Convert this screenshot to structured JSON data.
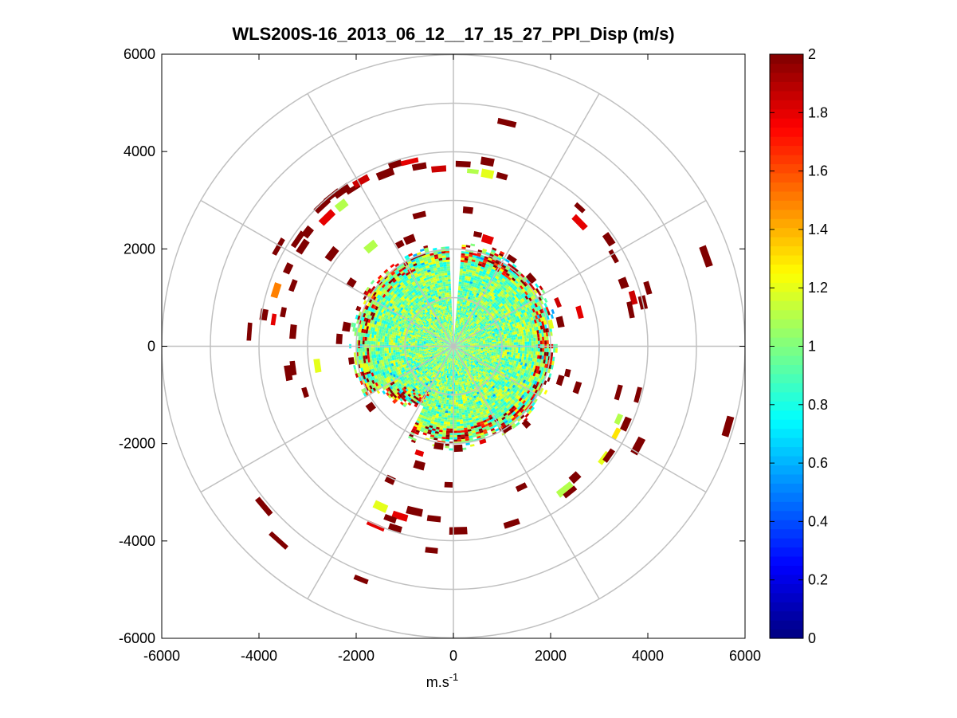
{
  "chart_data": {
    "type": "heatmap",
    "subtype": "polar-ppi",
    "title": "WLS200S-16_2013_06_12__17_15_27_PPI_Disp (m/s)",
    "xlabel": "m.s",
    "xlabel_sup": "-1",
    "ylabel": "",
    "xlim": [
      -6000,
      6000
    ],
    "ylim": [
      -6000,
      6000
    ],
    "xticks": [
      "-6000",
      "-4000",
      "-2000",
      "0",
      "2000",
      "4000",
      "6000"
    ],
    "yticks": [
      "6000",
      "4000",
      "2000",
      "0",
      "-2000",
      "-4000",
      "-6000"
    ],
    "xtick_values": [
      -6000,
      -4000,
      -2000,
      0,
      2000,
      4000,
      6000
    ],
    "ytick_values": [
      6000,
      4000,
      2000,
      0,
      -2000,
      -4000,
      -6000
    ],
    "grid": true,
    "range_rings": [
      1000,
      2000,
      3000,
      4000,
      5000,
      6000
    ],
    "spokes_deg": [
      0,
      30,
      60,
      90,
      120,
      150,
      180,
      210,
      240,
      270,
      300,
      330
    ],
    "colorbar": {
      "colormap": "jet",
      "range": [
        0,
        2
      ],
      "ticks": [
        "0",
        "0.2",
        "0.4",
        "0.6",
        "0.8",
        "1",
        "1.2",
        "1.4",
        "1.6",
        "1.8",
        "2"
      ],
      "tick_values": [
        0,
        0.2,
        0.4,
        0.6,
        0.8,
        1,
        1.2,
        1.4,
        1.6,
        1.8,
        2
      ]
    },
    "inner_field": {
      "max_range_m": 2000,
      "typical_value": 1.0,
      "value_spread": 0.25,
      "gap_azimuth_deg": [
        357,
        3
      ]
    },
    "patches": [
      {
        "x": -3200,
        "y": 2200,
        "v": 2
      },
      {
        "x": -3100,
        "y": 2050,
        "v": 2
      },
      {
        "x": -3000,
        "y": 2350,
        "v": 2
      },
      {
        "x": -2700,
        "y": 2900,
        "v": 2
      },
      {
        "x": -2500,
        "y": 3100,
        "v": 2
      },
      {
        "x": -2300,
        "y": 3200,
        "v": 2
      },
      {
        "x": -2050,
        "y": 3250,
        "v": 2
      },
      {
        "x": -1900,
        "y": 3400,
        "v": 1.85
      },
      {
        "x": -1400,
        "y": 3550,
        "v": 2
      },
      {
        "x": -1200,
        "y": 3750,
        "v": 2
      },
      {
        "x": -900,
        "y": 3800,
        "v": 1.8
      },
      {
        "x": -700,
        "y": 3700,
        "v": 2
      },
      {
        "x": -300,
        "y": 3650,
        "v": 1.85
      },
      {
        "x": -2600,
        "y": 2650,
        "v": 1.8
      },
      {
        "x": -2300,
        "y": 2900,
        "v": 1.1
      },
      {
        "x": -3600,
        "y": 2050,
        "v": 2
      },
      {
        "x": -3400,
        "y": 1600,
        "v": 2
      },
      {
        "x": -3300,
        "y": 1250,
        "v": 2
      },
      {
        "x": -3650,
        "y": 1150,
        "v": 1.5
      },
      {
        "x": -3500,
        "y": 700,
        "v": 2
      },
      {
        "x": -3700,
        "y": 550,
        "v": 1.8
      },
      {
        "x": -4200,
        "y": 300,
        "v": 2
      },
      {
        "x": -3900,
        "y": 650,
        "v": 2
      },
      {
        "x": -3300,
        "y": 300,
        "v": 2
      },
      {
        "x": -3400,
        "y": -550,
        "v": 2
      },
      {
        "x": -3300,
        "y": -450,
        "v": 2
      },
      {
        "x": -2800,
        "y": -400,
        "v": 1.2
      },
      {
        "x": -3050,
        "y": -950,
        "v": 2
      },
      {
        "x": -1700,
        "y": 2050,
        "v": 1.1
      },
      {
        "x": -1100,
        "y": 2100,
        "v": 2
      },
      {
        "x": -900,
        "y": 2200,
        "v": 2
      },
      {
        "x": -700,
        "y": 2700,
        "v": 2
      },
      {
        "x": 200,
        "y": 3750,
        "v": 2
      },
      {
        "x": 400,
        "y": 3600,
        "v": 1.1
      },
      {
        "x": 700,
        "y": 3550,
        "v": 1.2
      },
      {
        "x": 1000,
        "y": 3500,
        "v": 2
      },
      {
        "x": 700,
        "y": 3800,
        "v": 2
      },
      {
        "x": 1100,
        "y": 4600,
        "v": 2
      },
      {
        "x": 300,
        "y": 2800,
        "v": 2
      },
      {
        "x": 500,
        "y": 2300,
        "v": 2
      },
      {
        "x": 700,
        "y": 2200,
        "v": 1.8
      },
      {
        "x": 2600,
        "y": 2850,
        "v": 2
      },
      {
        "x": 3200,
        "y": 2200,
        "v": 2
      },
      {
        "x": 3300,
        "y": 1850,
        "v": 2
      },
      {
        "x": 3500,
        "y": 1300,
        "v": 2
      },
      {
        "x": 3700,
        "y": 1000,
        "v": 1.85
      },
      {
        "x": 3650,
        "y": 750,
        "v": 2
      },
      {
        "x": 3900,
        "y": 900,
        "v": 2
      },
      {
        "x": 4000,
        "y": 1200,
        "v": 2
      },
      {
        "x": 5200,
        "y": 1850,
        "v": 2
      },
      {
        "x": 2600,
        "y": 700,
        "v": 1.8
      },
      {
        "x": 2200,
        "y": 500,
        "v": 2
      },
      {
        "x": 2150,
        "y": 900,
        "v": 1.85
      },
      {
        "x": 2200,
        "y": -700,
        "v": 2
      },
      {
        "x": 2350,
        "y": -550,
        "v": 2
      },
      {
        "x": 2550,
        "y": -850,
        "v": 2
      },
      {
        "x": 3400,
        "y": -1500,
        "v": 1.1
      },
      {
        "x": 3550,
        "y": -1600,
        "v": 2
      },
      {
        "x": 3350,
        "y": -1800,
        "v": 1.3
      },
      {
        "x": 3800,
        "y": -2050,
        "v": 2
      },
      {
        "x": 3400,
        "y": -950,
        "v": 2
      },
      {
        "x": 3800,
        "y": -1000,
        "v": 2
      },
      {
        "x": 3100,
        "y": -2300,
        "v": 1.2
      },
      {
        "x": 3200,
        "y": -2250,
        "v": 2
      },
      {
        "x": 2500,
        "y": -2700,
        "v": 2
      },
      {
        "x": 2300,
        "y": -2950,
        "v": 1.1
      },
      {
        "x": 2400,
        "y": -3000,
        "v": 2
      },
      {
        "x": 1400,
        "y": -2900,
        "v": 2
      },
      {
        "x": 1200,
        "y": -3650,
        "v": 2
      },
      {
        "x": 100,
        "y": -3800,
        "v": 2
      },
      {
        "x": -100,
        "y": -2850,
        "v": 2
      },
      {
        "x": -400,
        "y": -3550,
        "v": 2
      },
      {
        "x": -800,
        "y": -3400,
        "v": 2
      },
      {
        "x": -1100,
        "y": -3500,
        "v": 1.8
      },
      {
        "x": -1300,
        "y": -3550,
        "v": 2
      },
      {
        "x": -1500,
        "y": -3300,
        "v": 1.2
      },
      {
        "x": -1600,
        "y": -3700,
        "v": 1.8
      },
      {
        "x": -1200,
        "y": -3750,
        "v": 2
      },
      {
        "x": -450,
        "y": -4200,
        "v": 2
      },
      {
        "x": -1900,
        "y": -4800,
        "v": 2
      },
      {
        "x": -3900,
        "y": -3300,
        "v": 2
      },
      {
        "x": -3600,
        "y": -4000,
        "v": 2
      },
      {
        "x": -1300,
        "y": -2750,
        "v": 2
      },
      {
        "x": -700,
        "y": -2450,
        "v": 2
      },
      {
        "x": -1700,
        "y": -1250,
        "v": 2
      },
      {
        "x": -700,
        "y": -2200,
        "v": 1.8
      },
      {
        "x": -300,
        "y": -2050,
        "v": 2
      },
      {
        "x": 100,
        "y": -2100,
        "v": 2
      },
      {
        "x": 600,
        "y": -1950,
        "v": 1.8
      },
      {
        "x": 1100,
        "y": -1700,
        "v": 2
      },
      {
        "x": 1500,
        "y": -1600,
        "v": 2
      },
      {
        "x": 2600,
        "y": 2550,
        "v": 1.8
      },
      {
        "x": 5650,
        "y": -1650,
        "v": 2
      },
      {
        "x": 1200,
        "y": 1800,
        "v": 2
      },
      {
        "x": 1600,
        "y": 1400,
        "v": 2
      },
      {
        "x": 2000,
        "y": 450,
        "v": 1.2
      },
      {
        "x": -2500,
        "y": 1900,
        "v": 2
      },
      {
        "x": -2100,
        "y": 1300,
        "v": 2
      },
      {
        "x": -2200,
        "y": 400,
        "v": 2
      },
      {
        "x": -2100,
        "y": -300,
        "v": 2
      },
      {
        "x": -2350,
        "y": 150,
        "v": 2
      },
      {
        "x": -1800,
        "y": -450,
        "v": 1.2
      }
    ]
  }
}
